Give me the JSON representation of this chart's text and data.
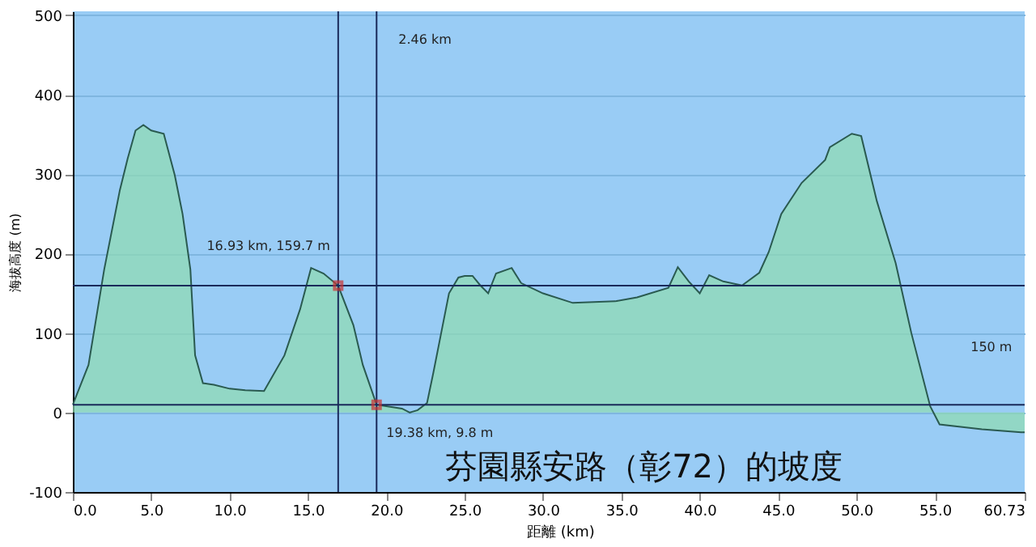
{
  "chart_data": {
    "type": "area",
    "title": "芬園縣安路（彰72）的坡度",
    "xlabel": "距離 (km)",
    "ylabel": "海拔高度 (m)",
    "x": [
      0,
      1,
      2,
      3,
      3.5,
      4,
      4.5,
      5,
      5.8,
      6.5,
      7,
      7.5,
      7.8,
      8.3,
      9,
      10,
      11,
      12.2,
      13.5,
      14.5,
      15.2,
      16,
      16.93,
      17.9,
      18.5,
      19.38,
      20,
      21,
      21.5,
      22,
      22.6,
      23,
      23.5,
      24,
      24.6,
      25,
      25.5,
      26,
      26.5,
      27,
      28,
      28.6,
      30,
      31.9,
      34.6,
      36,
      38,
      38.6,
      39.3,
      40,
      40.6,
      41.5,
      42.7,
      43.8,
      44.4,
      45.2,
      46.5,
      48,
      48.3,
      49.7,
      50.3,
      51.3,
      52.5,
      53.5,
      54.7,
      55.3,
      58,
      60.5,
      60.73
    ],
    "series": [
      {
        "color": "#8edcb0",
        "values": [
          10,
          60,
          180,
          280,
          320,
          355,
          362,
          355,
          351,
          299,
          250,
          180,
          72,
          37,
          35,
          30,
          28,
          27,
          72,
          130,
          182,
          175,
          159.7,
          110,
          60,
          9.8,
          8,
          5,
          0,
          3,
          12,
          50,
          100,
          150,
          170,
          172,
          172,
          160,
          150,
          175,
          182,
          163,
          150,
          138,
          140,
          145,
          157,
          183,
          165,
          150,
          173,
          165,
          160,
          176,
          202,
          250,
          289,
          318,
          334,
          351,
          348,
          266,
          188,
          100,
          8,
          -15,
          -21,
          -25,
          -25
        ]
      }
    ],
    "xlim": [
      0,
      60.73
    ],
    "ylim": [
      -100,
      505
    ],
    "xticks": [
      {
        "value": 0,
        "label": "0.0"
      },
      {
        "value": 5,
        "label": "5.0"
      },
      {
        "value": 10,
        "label": "10.0"
      },
      {
        "value": 15,
        "label": "15.0"
      },
      {
        "value": 20,
        "label": "20.0"
      },
      {
        "value": 25,
        "label": "25.0"
      },
      {
        "value": 30,
        "label": "30.0"
      },
      {
        "value": 35,
        "label": "35.0"
      },
      {
        "value": 40,
        "label": "40.0"
      },
      {
        "value": 45,
        "label": "45.0"
      },
      {
        "value": 50,
        "label": "50.0"
      },
      {
        "value": 55,
        "label": "55.0"
      },
      {
        "value": 60.73,
        "label": "60.73"
      }
    ],
    "yticks": [
      -100,
      0,
      100,
      200,
      300,
      400,
      500
    ],
    "grid": "y",
    "ref_lines": [
      {
        "axis": "x",
        "value": 16.93,
        "color": "#1a2a5a"
      },
      {
        "axis": "x",
        "value": 19.38,
        "color": "#1a2a5a"
      },
      {
        "axis": "y",
        "value": 159.7,
        "color": "#1a2a5a"
      },
      {
        "axis": "y",
        "value": 9.8,
        "color": "#1a2a5a"
      }
    ],
    "annotations": [
      "2.46 km",
      {
        "text": "16.93 km, 159.7 m",
        "x": 16.93,
        "y": 159.7
      },
      {
        "text": "19.38 km, 9.8 m",
        "x": 19.38,
        "y": 9.8
      },
      "150 m"
    ]
  }
}
